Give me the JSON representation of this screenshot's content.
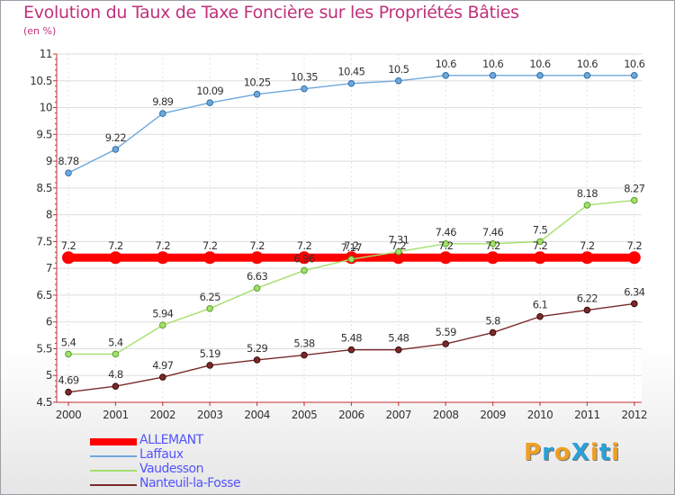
{
  "chart_data": {
    "type": "line",
    "title": "Evolution du Taux de Taxe Foncière sur les Propriétés Bâties",
    "ylabel": "(en %)",
    "xlabel": "",
    "ylim": [
      4.5,
      11
    ],
    "yticks": [
      4.5,
      5,
      5.5,
      6,
      6.5,
      7,
      7.5,
      8,
      8.5,
      9,
      9.5,
      10,
      10.5,
      11
    ],
    "ytick_labels": [
      "4.5",
      "5",
      "5.5",
      "6",
      "6.5",
      "7",
      "7.5",
      "8",
      "8.5",
      "9",
      "9.5",
      "10",
      "10.5",
      "11"
    ],
    "categories": [
      "2000",
      "2001",
      "2002",
      "2003",
      "2004",
      "2005",
      "2006",
      "2007",
      "2008",
      "2009",
      "2010",
      "2011",
      "2012"
    ],
    "series": [
      {
        "name": "ALLEMANT",
        "color": "#ff0000",
        "values": [
          7.2,
          7.2,
          7.2,
          7.2,
          7.2,
          7.2,
          7.2,
          7.2,
          7.2,
          7.2,
          7.2,
          7.2,
          7.2
        ],
        "labels": [
          "7.2",
          "7.2",
          "7.2",
          "7.2",
          "7.2",
          "7.2",
          "7.2",
          "7.2",
          "7.2",
          "7.2",
          "7.2",
          "7.2",
          "7.2"
        ]
      },
      {
        "name": "Laffaux",
        "color": "#6fa8dc",
        "values": [
          8.78,
          9.22,
          9.89,
          10.09,
          10.25,
          10.35,
          10.45,
          10.5,
          10.6,
          10.6,
          10.6,
          10.6,
          10.6
        ],
        "labels": [
          "8.78",
          "9.22",
          "9.89",
          "10.09",
          "10.25",
          "10.35",
          "10.45",
          "10.5",
          "10.6",
          "10.6",
          "10.6",
          "10.6",
          "10.6"
        ]
      },
      {
        "name": "Vaudesson",
        "color": "#a4e06c",
        "values": [
          5.4,
          5.4,
          5.94,
          6.25,
          6.63,
          6.96,
          7.17,
          7.31,
          7.46,
          7.46,
          7.5,
          8.18,
          8.27
        ],
        "labels": [
          "5.4",
          "5.4",
          "5.94",
          "6.25",
          "6.63",
          "6.96",
          "7.17",
          "7.31",
          "7.46",
          "7.46",
          "7.5",
          "8.18",
          "8.27"
        ]
      },
      {
        "name": "Nanteuil-la-Fosse",
        "color": "#7a2a2a",
        "values": [
          4.69,
          4.8,
          4.97,
          5.19,
          5.29,
          5.38,
          5.48,
          5.48,
          5.59,
          5.8,
          6.1,
          6.22,
          6.34
        ],
        "labels": [
          "4.69",
          "4.8",
          "4.97",
          "5.19",
          "5.29",
          "5.38",
          "5.48",
          "5.48",
          "5.59",
          "5.8",
          "6.1",
          "6.22",
          "6.34"
        ]
      }
    ],
    "legend_position": "bottom-left",
    "grid": true
  },
  "logo": {
    "text": "ProXiti",
    "letters": [
      "P",
      "r",
      "o",
      "X",
      "i",
      "t",
      "i"
    ],
    "colors": [
      "#f0a020",
      "#2aa0d8",
      "#f0a020",
      "#2aa0d8",
      "#f0a020",
      "#2aa0d8",
      "#f0a020"
    ]
  }
}
